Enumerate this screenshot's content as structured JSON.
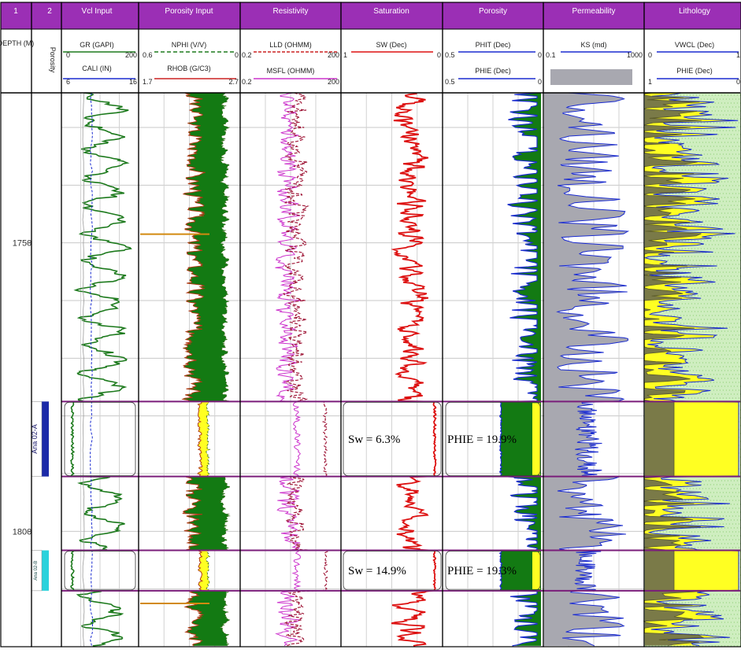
{
  "colors": {
    "header_fill": "#9b2fb5",
    "header_text": "#ffffff",
    "gr_curve": "#1d7a1d",
    "shade_green": "#137a13",
    "shade_yellow": "#ffff22",
    "resistivity": "#cc33cc",
    "saturation": "#dd1111",
    "porosity_line": "#1a2bd0",
    "permeability_fill": "#a8a8b0",
    "zone_line": "#7a1d7a",
    "lith_green": "#cfeec0",
    "lith_olive": "#7a7a48",
    "zone1_bar": "#1b2aa8",
    "zone2_bar": "#2ad2dc"
  },
  "tracks": [
    {
      "index": "1",
      "title": ""
    },
    {
      "index": "2",
      "title": ""
    },
    {
      "index": "",
      "title": "Vcl Input"
    },
    {
      "index": "",
      "title": "Porosity Input"
    },
    {
      "index": "",
      "title": "Resistivity"
    },
    {
      "index": "",
      "title": "Saturation"
    },
    {
      "index": "",
      "title": "Porosity"
    },
    {
      "index": "",
      "title": "Permeability"
    },
    {
      "index": "",
      "title": "Lithology"
    }
  ],
  "curve_headers": {
    "depth": "DEPTH (M)",
    "zone_track": "Porosity",
    "vcl": [
      {
        "name": "GR (GAPI)",
        "left": "0",
        "right": "200"
      },
      {
        "name": "CALI (IN)",
        "left": "6",
        "right": "16"
      }
    ],
    "porosity_input": [
      {
        "name": "NPHI (V/V)",
        "left": "0.6",
        "right": "0"
      },
      {
        "name": "RHOB (G/C3)",
        "left": "1.7",
        "right": "2.7"
      }
    ],
    "resistivity": [
      {
        "name": "LLD (OHMM)",
        "left": "0.2",
        "right": "200"
      },
      {
        "name": "MSFL (OHMM)",
        "left": "0.2",
        "right": "200"
      }
    ],
    "saturation": [
      {
        "name": "SW (Dec)",
        "left": "1",
        "right": "0"
      }
    ],
    "porosity": [
      {
        "name": "PHIT (Dec)",
        "left": "0.5",
        "right": "0"
      },
      {
        "name": "PHIE (Dec)",
        "left": "0.5",
        "right": "0"
      }
    ],
    "permeability": [
      {
        "name": "KS (md)",
        "left": "0.1",
        "right": "1000"
      }
    ],
    "lithology": [
      {
        "name": "VWCL (Dec)",
        "left": "0",
        "right": "1"
      },
      {
        "name": "PHIE (Dec)",
        "left": "1",
        "right": "0"
      }
    ]
  },
  "depth_labels": [
    "1750",
    "1800"
  ],
  "zones": [
    {
      "label": "Ana 02-A",
      "sw": "Sw = 6.3%",
      "phie": "PHIE = 19.9%"
    },
    {
      "label": "Ana 02-B",
      "sw": "Sw = 14.9%",
      "phie": "PHIE = 19.3%"
    }
  ],
  "chart_data": {
    "type": "line",
    "depth_range": [
      1724,
      1820
    ],
    "zone_intervals": [
      [
        1777.5,
        1790.5
      ],
      [
        1803.3,
        1810.3
      ]
    ],
    "zone_summary": [
      {
        "sw_percent": 6.3,
        "phie_percent": 19.9
      },
      {
        "sw_percent": 14.9,
        "phie_percent": 19.3
      }
    ]
  }
}
